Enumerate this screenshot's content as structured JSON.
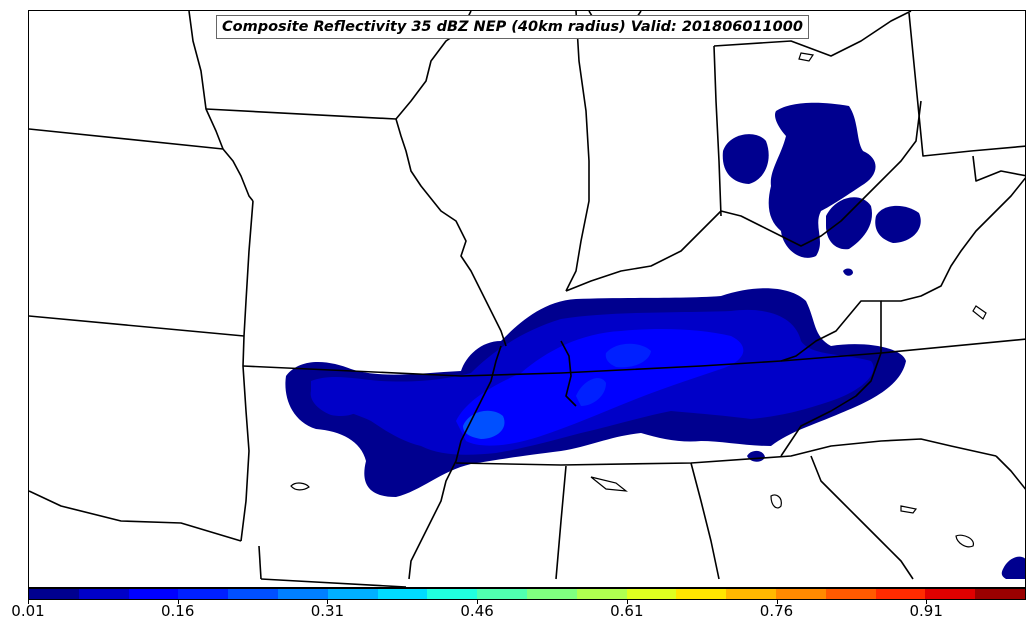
{
  "title": "Composite Reflectivity 35 dBZ NEP (40km radius) Valid: 201806011000",
  "colorbar": {
    "colors": [
      "#00008f",
      "#0000c8",
      "#0000ff",
      "#0020ff",
      "#0050ff",
      "#0080ff",
      "#00b0ff",
      "#00dcff",
      "#20ffdf",
      "#50ffb0",
      "#80ff80",
      "#b0ff50",
      "#dfff20",
      "#ffe600",
      "#ffb800",
      "#ff8a00",
      "#ff5a00",
      "#ff2b00",
      "#e00000",
      "#9a0000"
    ],
    "ticks": [
      {
        "label": "0.01",
        "value": 0.01
      },
      {
        "label": "0.16",
        "value": 0.16
      },
      {
        "label": "0.31",
        "value": 0.31
      },
      {
        "label": "0.46",
        "value": 0.46
      },
      {
        "label": "0.61",
        "value": 0.61
      },
      {
        "label": "0.76",
        "value": 0.76
      },
      {
        "label": "0.91",
        "value": 0.91
      }
    ],
    "range": [
      0.01,
      1.01
    ]
  },
  "layers": {
    "boundaries": "us-state-boundaries",
    "field": "probability-contours"
  }
}
